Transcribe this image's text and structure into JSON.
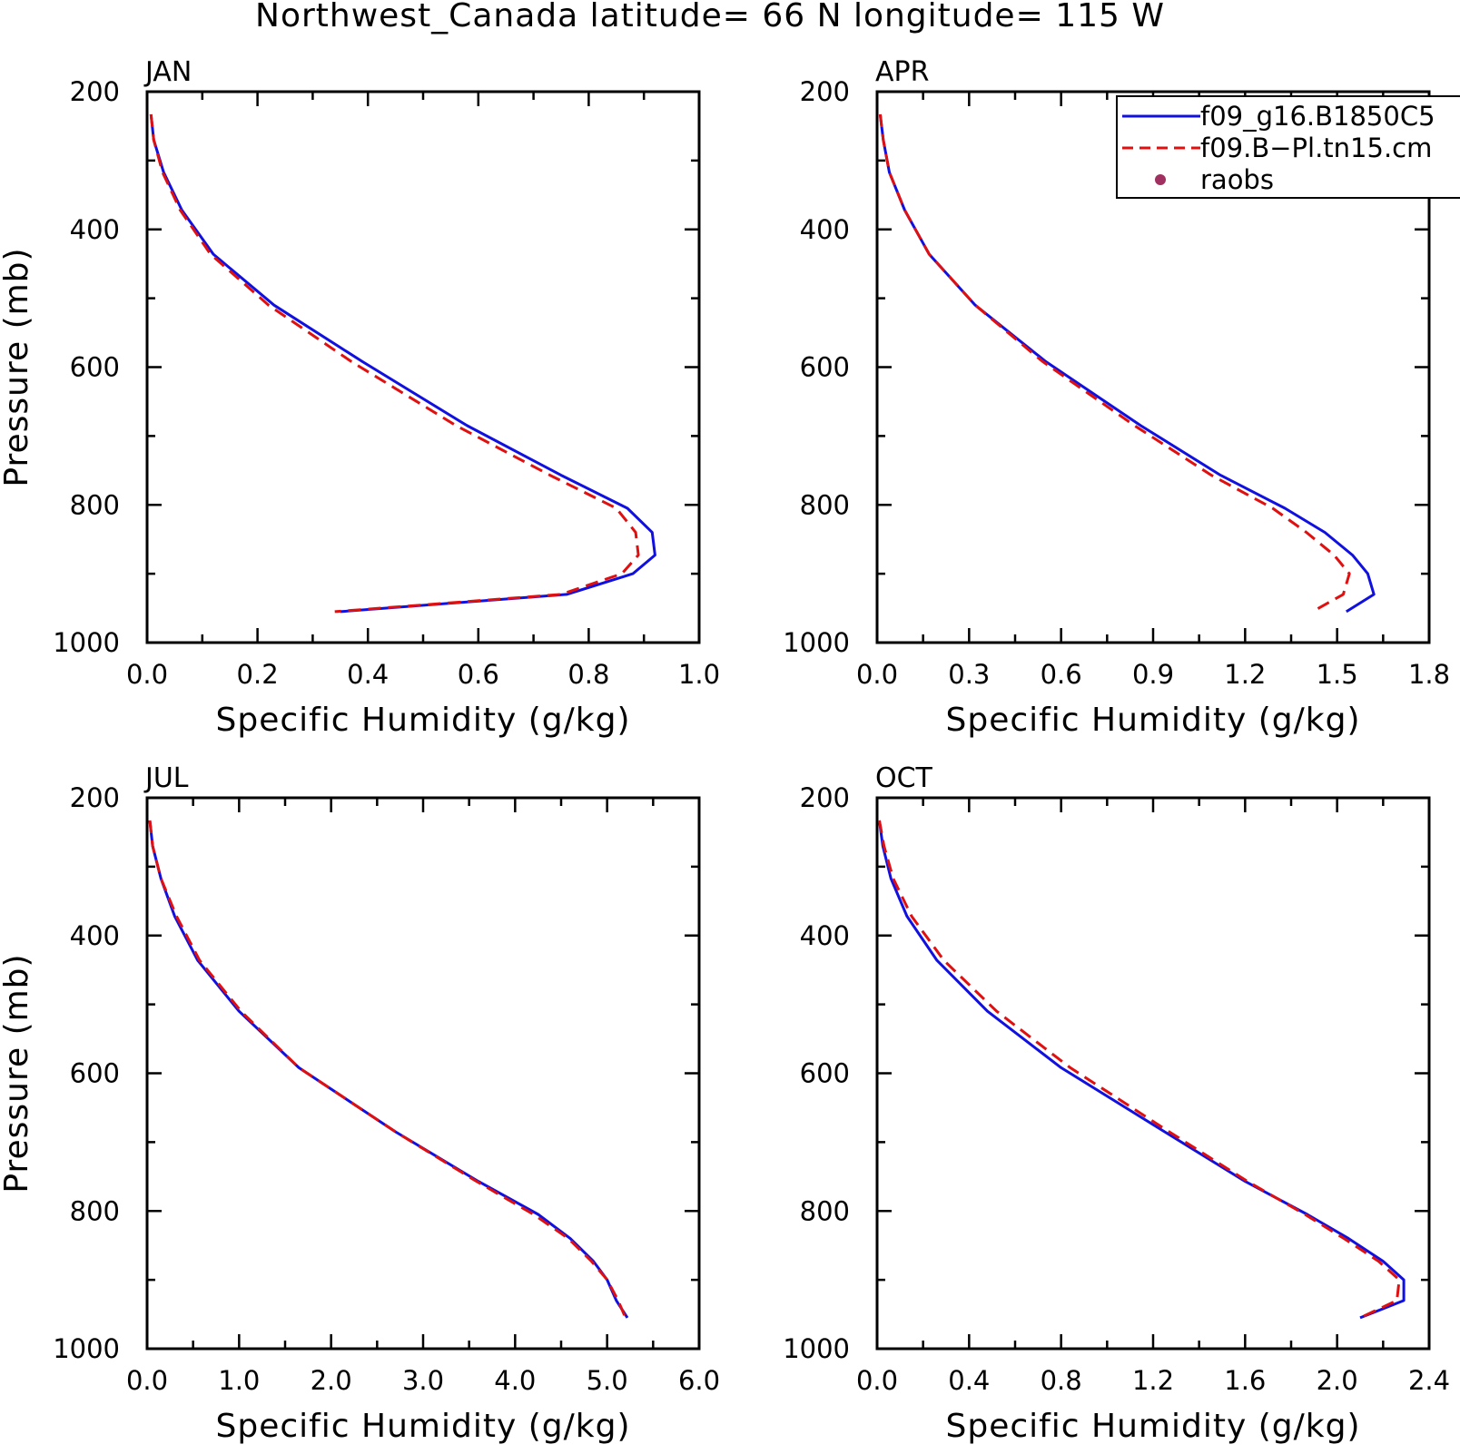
{
  "title": "Northwest_Canada  latitude= 66 N longitude= 115 W",
  "legend": {
    "entries": [
      {
        "label": "f09_g16.B1850C5",
        "color": "#1010e0",
        "style": "solid"
      },
      {
        "label": "f09.B−Pl.tn15.cm",
        "color": "#e01010",
        "style": "dashed"
      },
      {
        "label": "raobs",
        "color": "#a03060",
        "style": "dot"
      }
    ]
  },
  "chart_data": [
    {
      "type": "line",
      "panel": "JAN",
      "xlabel": "Specific Humidity (g/kg)",
      "ylabel": "Pressure (mb)",
      "xlim": [
        0,
        1.0
      ],
      "xticks": [
        "0.0",
        "0.2",
        "0.4",
        "0.6",
        "0.8",
        "1.0"
      ],
      "ylim": [
        200,
        1000
      ],
      "yticks": [
        "200",
        "400",
        "600",
        "800",
        "1000"
      ],
      "y_reversed": true,
      "pressure": [
        233,
        270,
        317,
        372,
        436,
        510,
        592,
        685,
        757,
        805,
        840,
        873,
        900,
        930,
        955
      ],
      "series": [
        {
          "name": "f09_g16.B1850C5",
          "x": [
            0.007,
            0.012,
            0.03,
            0.063,
            0.12,
            0.23,
            0.39,
            0.58,
            0.75,
            0.87,
            0.915,
            0.92,
            0.88,
            0.76,
            0.35
          ]
        },
        {
          "name": "f09.B−Pl.tn15.cm",
          "x": [
            0.007,
            0.012,
            0.028,
            0.06,
            0.115,
            0.22,
            0.37,
            0.56,
            0.73,
            0.85,
            0.885,
            0.89,
            0.86,
            0.75,
            0.34
          ]
        }
      ]
    },
    {
      "type": "line",
      "panel": "APR",
      "xlabel": "Specific Humidity (g/kg)",
      "ylabel": "",
      "xlim": [
        0,
        1.8
      ],
      "xticks": [
        "0.0",
        "0.3",
        "0.6",
        "0.9",
        "1.2",
        "1.5",
        "1.8"
      ],
      "ylim": [
        200,
        1000
      ],
      "yticks": [
        "200",
        "400",
        "600",
        "800",
        "1000"
      ],
      "y_reversed": true,
      "pressure": [
        233,
        270,
        317,
        372,
        436,
        510,
        592,
        685,
        757,
        805,
        840,
        873,
        900,
        930,
        955
      ],
      "series": [
        {
          "name": "f09_g16.B1850C5",
          "x": [
            0.01,
            0.02,
            0.04,
            0.09,
            0.17,
            0.32,
            0.55,
            0.86,
            1.12,
            1.33,
            1.46,
            1.55,
            1.6,
            1.62,
            1.53
          ]
        },
        {
          "name": "f09.B−Pl.tn15.cm",
          "x": [
            0.01,
            0.02,
            0.04,
            0.09,
            0.17,
            0.32,
            0.54,
            0.84,
            1.09,
            1.29,
            1.4,
            1.49,
            1.54,
            1.52,
            1.42
          ]
        }
      ]
    },
    {
      "type": "line",
      "panel": "JUL",
      "xlabel": "Specific Humidity (g/kg)",
      "ylabel": "Pressure (mb)",
      "xlim": [
        0,
        6.0
      ],
      "xticks": [
        "0.0",
        "1.0",
        "2.0",
        "3.0",
        "4.0",
        "5.0",
        "6.0"
      ],
      "ylim": [
        200,
        1000
      ],
      "yticks": [
        "200",
        "400",
        "600",
        "800",
        "1000"
      ],
      "y_reversed": true,
      "pressure": [
        233,
        270,
        317,
        372,
        436,
        510,
        592,
        685,
        757,
        805,
        840,
        873,
        900,
        930,
        955
      ],
      "series": [
        {
          "name": "f09_g16.B1850C5",
          "x": [
            0.03,
            0.06,
            0.15,
            0.3,
            0.55,
            1.0,
            1.65,
            2.7,
            3.6,
            4.25,
            4.6,
            4.85,
            5.0,
            5.1,
            5.22
          ]
        },
        {
          "name": "f09.B−Pl.tn15.cm",
          "x": [
            0.03,
            0.06,
            0.15,
            0.32,
            0.57,
            1.02,
            1.65,
            2.7,
            3.58,
            4.2,
            4.58,
            4.83,
            5.0,
            5.12,
            5.2
          ]
        }
      ]
    },
    {
      "type": "line",
      "panel": "OCT",
      "xlabel": "Specific Humidity (g/kg)",
      "ylabel": "",
      "xlim": [
        0,
        2.4
      ],
      "xticks": [
        "0.0",
        "0.4",
        "0.8",
        "1.2",
        "1.6",
        "2.0",
        "2.4"
      ],
      "ylim": [
        200,
        1000
      ],
      "yticks": [
        "200",
        "400",
        "600",
        "800",
        "1000"
      ],
      "y_reversed": true,
      "pressure": [
        233,
        270,
        317,
        372,
        436,
        510,
        592,
        685,
        757,
        805,
        840,
        873,
        900,
        930,
        955
      ],
      "series": [
        {
          "name": "f09_g16.B1850C5",
          "x": [
            0.01,
            0.025,
            0.06,
            0.13,
            0.26,
            0.48,
            0.8,
            1.25,
            1.6,
            1.87,
            2.05,
            2.2,
            2.29,
            2.29,
            2.1
          ]
        },
        {
          "name": "f09.B−Pl.tn15.cm",
          "x": [
            0.01,
            0.03,
            0.07,
            0.15,
            0.29,
            0.52,
            0.84,
            1.27,
            1.61,
            1.86,
            2.03,
            2.18,
            2.27,
            2.26,
            2.1
          ]
        }
      ]
    }
  ]
}
